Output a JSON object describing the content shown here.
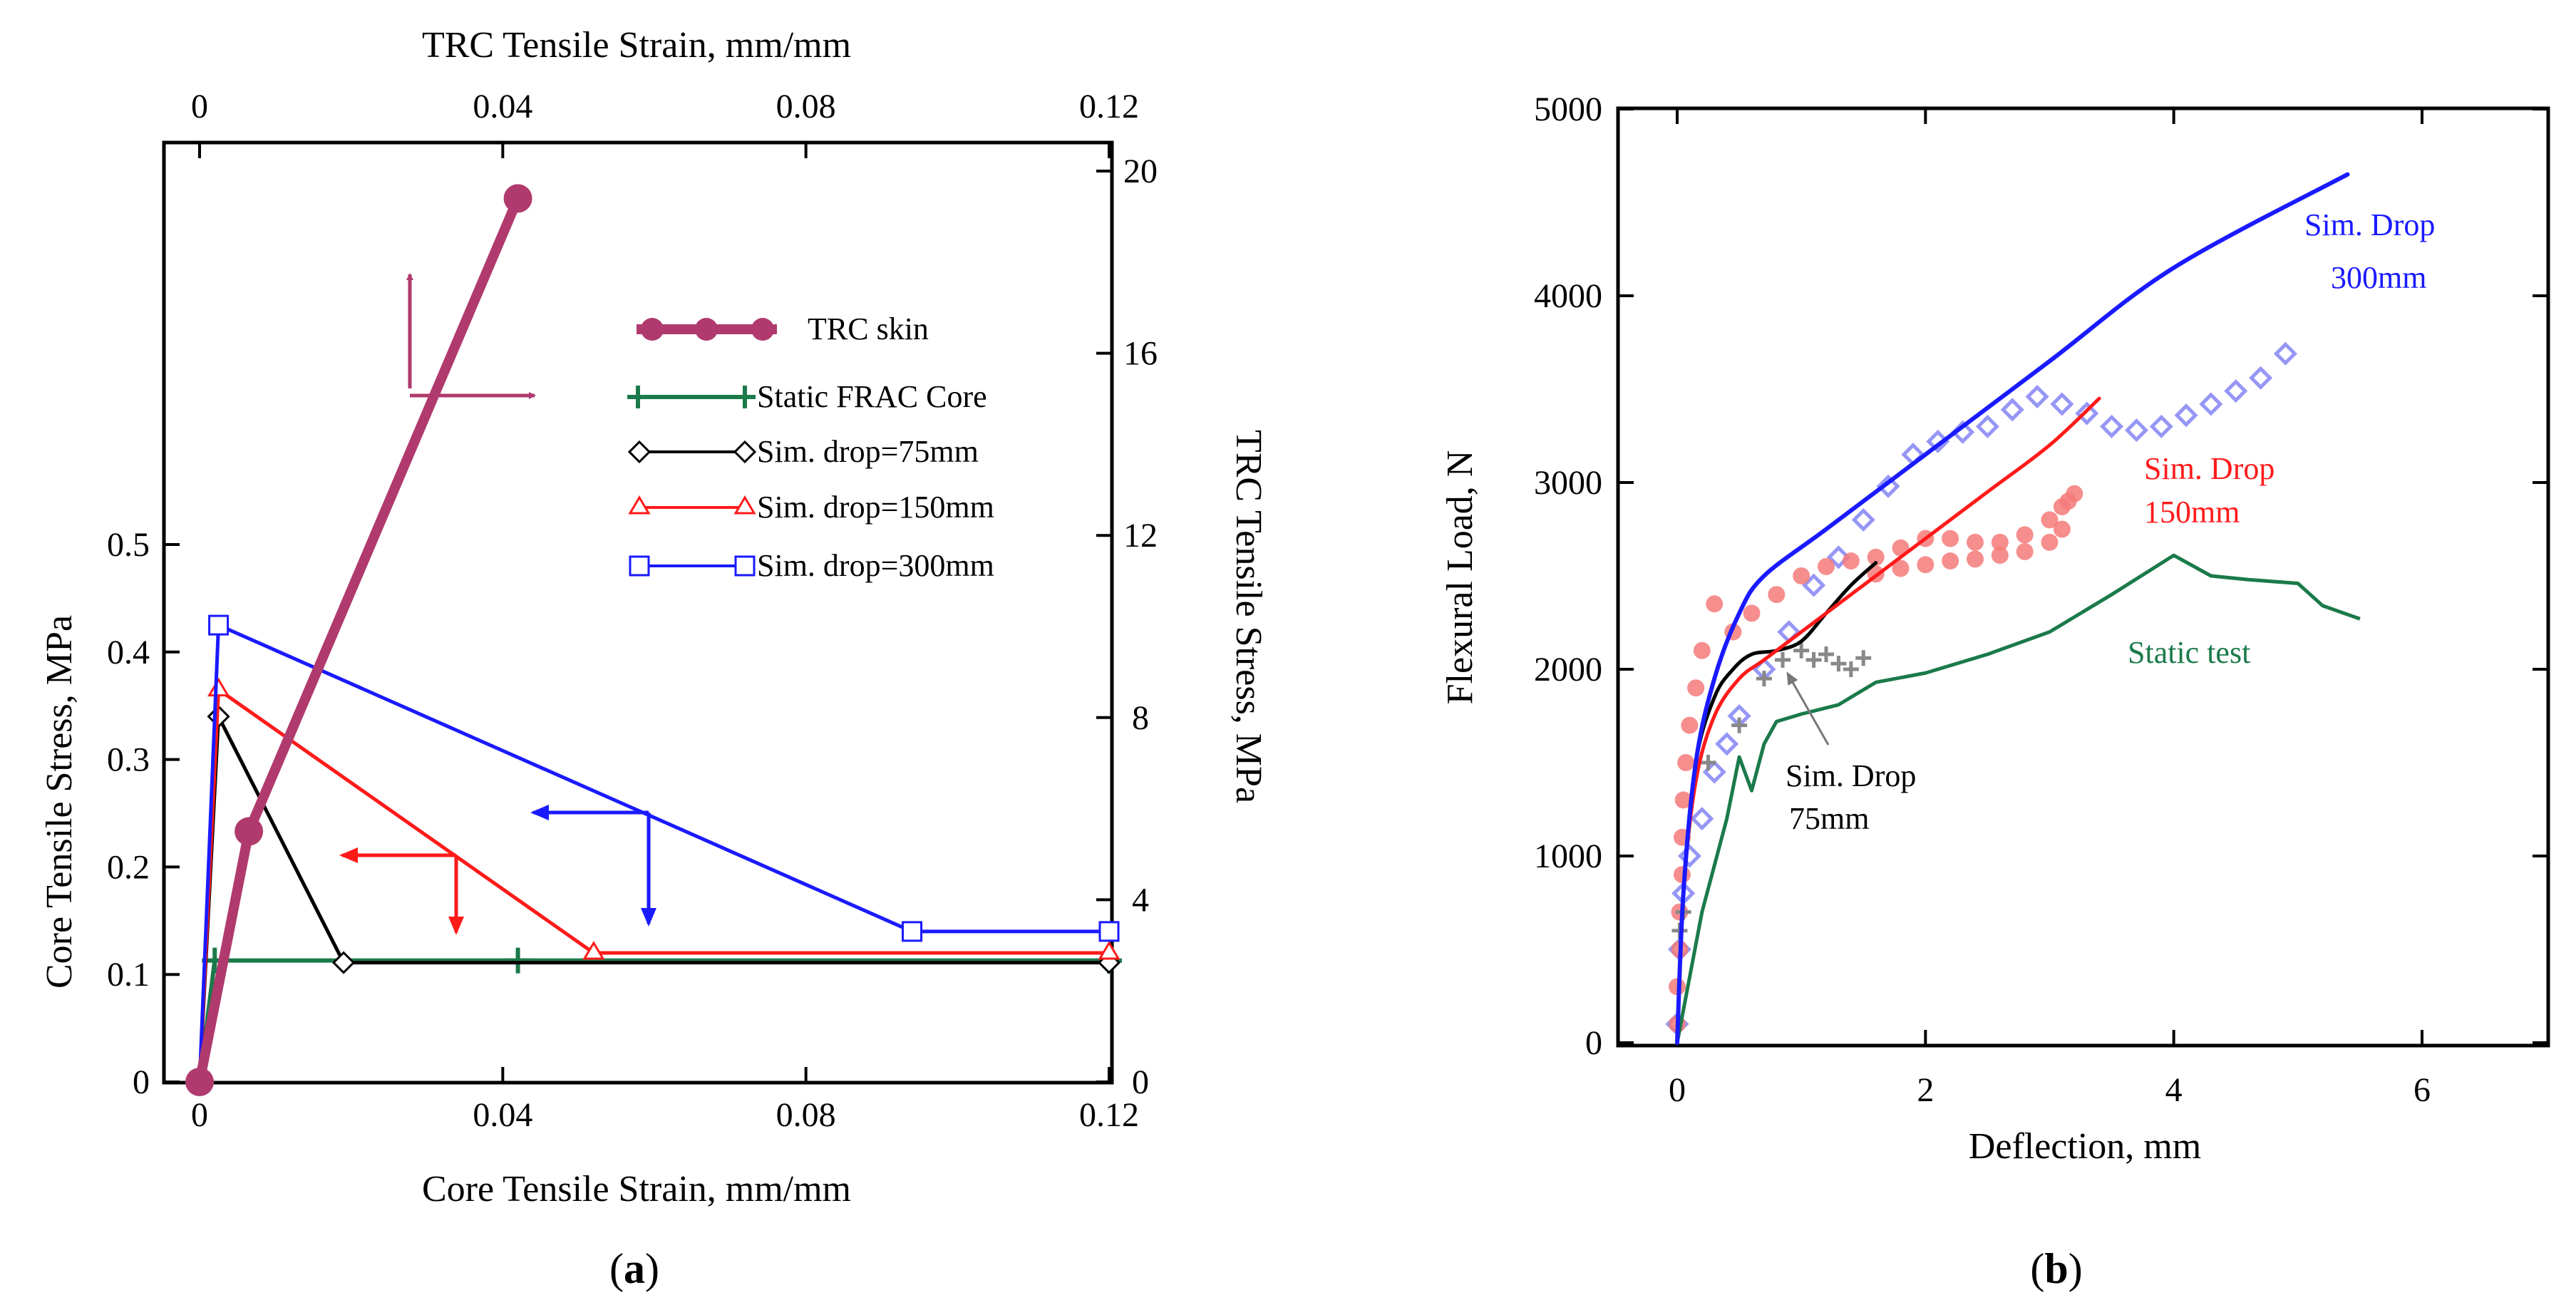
{
  "panels": [
    {
      "label_open": "(",
      "label_letter": "a",
      "label_close": ")"
    },
    {
      "label_open": "(",
      "label_letter": "b",
      "label_close": ")"
    }
  ],
  "colors": {
    "trc_skin": "#b03a6e",
    "static_frac": "#1b7a4a",
    "sim75": "#000000",
    "sim150": "#ff1a1a",
    "sim300": "#1a1aff",
    "marker300_light": "#8b8bf5",
    "marker150_light": "#f47a7a",
    "marker75_light": "#888888"
  },
  "chart_data": [
    {
      "type": "line",
      "xlabel": "Core Tensile Strain, mm/mm",
      "ylabel": "Core Tensile Stress, MPa",
      "x2label": "TRC Tensile Strain, mm/mm",
      "y2label": "TRC Tensile Stress, MPa",
      "xlim": [
        0,
        0.12
      ],
      "ylim": [
        0,
        0.5
      ],
      "x2lim": [
        0,
        0.12
      ],
      "y2lim": [
        0,
        20
      ],
      "xticks": [
        "0",
        "0.04",
        "0.08",
        "0.12"
      ],
      "yticks": [
        "0",
        "0.1",
        "0.2",
        "0.3",
        "0.4",
        "0.5"
      ],
      "x2ticks": [
        "0",
        "0.04",
        "0.08",
        "0.12"
      ],
      "y2ticks": [
        "0",
        "4",
        "8",
        "12",
        "16",
        "20"
      ],
      "legend": [
        "TRC skin",
        "Static FRAC Core",
        "Sim. drop=75mm",
        "Sim. drop=150mm",
        "Sim. drop=300mm"
      ],
      "series": [
        {
          "name": "TRC skin",
          "axis": "secondary",
          "x": [
            0,
            0.0065,
            0.042
          ],
          "y": [
            0,
            5.5,
            19.4
          ]
        },
        {
          "name": "Static FRAC Core",
          "axis": "primary",
          "x": [
            0,
            0.002,
            0.042,
            0.12
          ],
          "y": [
            0,
            0.113,
            0.113,
            0.113
          ]
        },
        {
          "name": "Sim. drop=75mm",
          "axis": "primary",
          "x": [
            0,
            0.0025,
            0.019,
            0.12
          ],
          "y": [
            0,
            0.34,
            0.111,
            0.111
          ]
        },
        {
          "name": "Sim. drop=150mm",
          "axis": "primary",
          "x": [
            0,
            0.0025,
            0.052,
            0.12
          ],
          "y": [
            0,
            0.365,
            0.12,
            0.12
          ]
        },
        {
          "name": "Sim. drop=300mm",
          "axis": "primary",
          "x": [
            0,
            0.0025,
            0.094,
            0.12
          ],
          "y": [
            0,
            0.425,
            0.14,
            0.14
          ]
        }
      ]
    },
    {
      "type": "line",
      "xlabel": "Deflection, mm",
      "ylabel": "Flexural Load, N",
      "xlim": [
        -0.3,
        7
      ],
      "ylim": [
        0,
        5000
      ],
      "xticks": [
        "0",
        "2",
        "4",
        "6"
      ],
      "yticks": [
        "0",
        "1000",
        "2000",
        "3000",
        "4000",
        "5000"
      ],
      "annotations": [
        {
          "series": "Sim. Drop 300mm",
          "lines": [
            "Sim. Drop",
            "300mm"
          ]
        },
        {
          "series": "Sim. Drop 150mm",
          "lines": [
            "Sim. Drop",
            "150mm"
          ]
        },
        {
          "series": "Sim. Drop 75mm",
          "lines": [
            "Sim. Drop",
            "75mm"
          ]
        },
        {
          "series": "Static test",
          "lines": [
            "Static test"
          ]
        }
      ],
      "series": [
        {
          "name": "Sim. Drop 300mm",
          "style": "line",
          "x": [
            0,
            0.05,
            0.15,
            0.3,
            0.5,
            0.7,
            1.2,
            2,
            3,
            4,
            5.4
          ],
          "y": [
            0,
            800,
            1500,
            1950,
            2300,
            2500,
            2750,
            3150,
            3650,
            4150,
            4650
          ]
        },
        {
          "name": "Sim. Drop 150mm",
          "style": "line",
          "x": [
            0,
            0.05,
            0.15,
            0.3,
            0.5,
            0.7,
            1,
            1.5,
            2,
            2.5,
            3,
            3.4
          ],
          "y": [
            0,
            800,
            1400,
            1750,
            1950,
            2050,
            2200,
            2450,
            2700,
            2950,
            3200,
            3450
          ]
        },
        {
          "name": "Sim. Drop 75mm",
          "style": "line",
          "x": [
            0,
            0.05,
            0.15,
            0.3,
            0.45,
            0.6,
            0.8,
            1,
            1.2,
            1.4,
            1.6
          ],
          "y": [
            0,
            800,
            1500,
            1850,
            2000,
            2080,
            2100,
            2150,
            2300,
            2450,
            2570
          ]
        },
        {
          "name": "Static test",
          "style": "line",
          "x": [
            0,
            0.1,
            0.2,
            0.3,
            0.4,
            0.5,
            0.6,
            0.7,
            0.8,
            1,
            1.3,
            1.6,
            2,
            2.5,
            3,
            3.5,
            4,
            4.3,
            4.6,
            5,
            5.2,
            5.5
          ],
          "y": [
            0,
            350,
            700,
            950,
            1200,
            1530,
            1350,
            1600,
            1720,
            1760,
            1810,
            1930,
            1980,
            2080,
            2200,
            2400,
            2610,
            2500,
            2480,
            2460,
            2340,
            2270
          ]
        },
        {
          "name": "Sim. Drop 300mm markers",
          "style": "marker",
          "x": [
            0,
            0.02,
            0.05,
            0.1,
            0.2,
            0.3,
            0.4,
            0.5,
            0.7,
            0.9,
            1.1,
            1.3,
            1.5,
            1.7,
            1.9,
            2.1,
            2.3,
            2.5,
            2.7,
            2.9,
            3.1,
            3.3,
            3.5,
            3.7,
            3.9,
            4.1,
            4.3,
            4.5,
            4.7,
            4.9
          ],
          "y": [
            100,
            500,
            800,
            1000,
            1200,
            1450,
            1600,
            1750,
            2000,
            2200,
            2450,
            2600,
            2800,
            2980,
            3150,
            3220,
            3270,
            3300,
            3390,
            3460,
            3420,
            3370,
            3300,
            3280,
            3300,
            3360,
            3420,
            3490,
            3560,
            3690
          ]
        },
        {
          "name": "Sim. Drop 150mm markers",
          "style": "marker",
          "x": [
            0,
            0,
            0.02,
            0.02,
            0.04,
            0.04,
            0.05,
            0.07,
            0.1,
            0.15,
            0.2,
            0.3,
            0.45,
            0.6,
            0.8,
            1,
            1.2,
            1.4,
            1.6,
            1.8,
            2,
            2.2,
            2.4,
            2.6,
            2.8,
            3,
            3.1,
            3.15,
            3.2,
            3.1,
            3,
            2.8,
            2.6,
            2.4,
            2.2,
            2,
            1.8,
            1.6
          ],
          "y": [
            100,
            300,
            500,
            700,
            900,
            1100,
            1300,
            1500,
            1700,
            1900,
            2100,
            2350,
            2200,
            2300,
            2400,
            2500,
            2550,
            2580,
            2600,
            2650,
            2700,
            2700,
            2680,
            2680,
            2720,
            2800,
            2870,
            2900,
            2940,
            2750,
            2680,
            2630,
            2610,
            2590,
            2580,
            2560,
            2540,
            2510
          ]
        },
        {
          "name": "Sim. Drop 75mm markers",
          "style": "cross",
          "x": [
            0.02,
            0.05,
            0.25,
            0.5,
            0.7,
            0.85,
            1,
            1.1,
            1.2,
            1.3,
            1.4,
            1.5
          ],
          "y": [
            600,
            700,
            1500,
            1700,
            1950,
            2050,
            2100,
            2050,
            2080,
            2030,
            2000,
            2060
          ]
        }
      ]
    }
  ]
}
